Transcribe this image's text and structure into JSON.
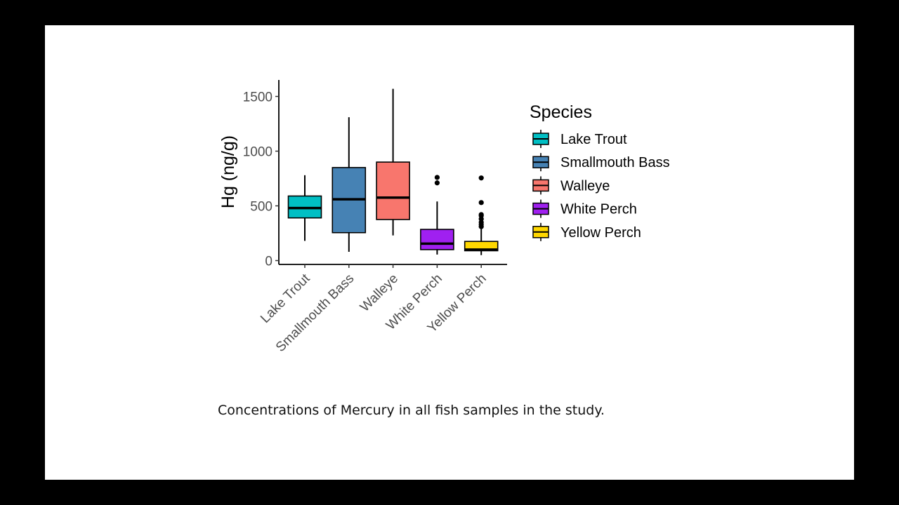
{
  "caption": "Concentrations of Mercury in all fish samples in the study.",
  "chart_data": {
    "type": "boxplot",
    "title": "",
    "xlabel": "",
    "ylabel": "Hg (ng/g)",
    "ylim": [
      0,
      1650
    ],
    "yticks": [
      0,
      500,
      1000,
      1500
    ],
    "grid": false,
    "legend_position": "right",
    "legend_title": "Species",
    "categories": [
      "Lake Trout",
      "Smallmouth Bass",
      "Walleye",
      "White Perch",
      "Yellow Perch"
    ],
    "series": [
      {
        "name": "Lake Trout",
        "color": "#00BFC4",
        "min": 180,
        "q1": 390,
        "median": 480,
        "q3": 590,
        "max": 780,
        "outliers": []
      },
      {
        "name": "Smallmouth Bass",
        "color": "#4682B4",
        "min": 80,
        "q1": 255,
        "median": 560,
        "q3": 850,
        "max": 1310,
        "outliers": []
      },
      {
        "name": "Walleye",
        "color": "#F8766D",
        "min": 230,
        "q1": 375,
        "median": 575,
        "q3": 900,
        "max": 1570,
        "outliers": []
      },
      {
        "name": "White Perch",
        "color": "#A020F0",
        "min": 55,
        "q1": 100,
        "median": 155,
        "q3": 285,
        "max": 540,
        "outliers": [
          710,
          760
        ]
      },
      {
        "name": "Yellow Perch",
        "color": "#FFD700",
        "min": 50,
        "q1": 90,
        "median": 100,
        "q3": 175,
        "max": 290,
        "outliers": [
          310,
          330,
          350,
          380,
          410,
          420,
          530,
          755
        ]
      }
    ]
  }
}
